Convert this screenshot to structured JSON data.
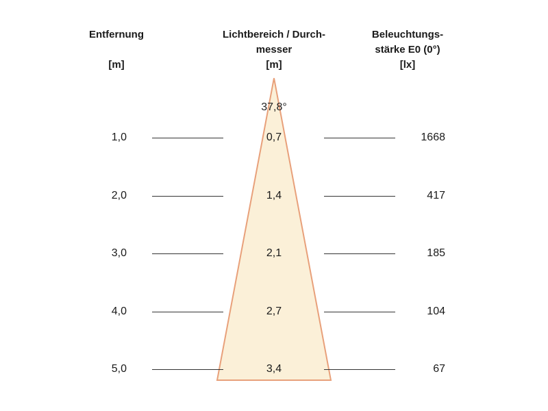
{
  "headers": {
    "distance": [
      "Entfernung",
      "",
      "[m]"
    ],
    "beam": [
      "Lichtbereich / Durch-",
      "messer",
      "[m]"
    ],
    "illuminance": [
      "Beleuchtungs-",
      "stärke E0 (0°)",
      "[lx]"
    ]
  },
  "beam_angle": "37,8°",
  "rows": [
    {
      "distance": "1,0",
      "diameter": "0,7",
      "illuminance": "1668"
    },
    {
      "distance": "2,0",
      "diameter": "1,4",
      "illuminance": "417"
    },
    {
      "distance": "3,0",
      "diameter": "2,1",
      "illuminance": "185"
    },
    {
      "distance": "4,0",
      "diameter": "2,7",
      "illuminance": "104"
    },
    {
      "distance": "5,0",
      "diameter": "3,4",
      "illuminance": "67"
    }
  ],
  "colors": {
    "cone_fill": "#fbf0d8",
    "cone_edge": "#e8a07a",
    "line": "#333333"
  }
}
